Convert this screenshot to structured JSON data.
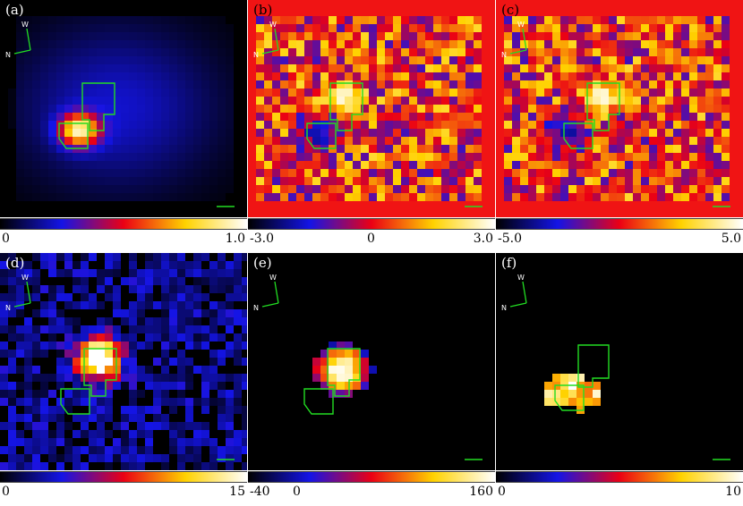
{
  "panels": [
    {
      "label": "(a)",
      "colormap": "bb",
      "colorbar_ticks": [
        "0",
        "1.0"
      ],
      "map_style": "smooth-blue",
      "compass": {
        "w": "W",
        "n": "N"
      }
    },
    {
      "label": "(b)",
      "colormap": "bb",
      "colorbar_ticks": [
        "-3.0",
        "0",
        "3.0"
      ],
      "map_style": "noisy-red",
      "compass": {
        "w": "W",
        "n": "N"
      }
    },
    {
      "label": "(c)",
      "colormap": "bb",
      "colorbar_ticks": [
        "-5.0",
        "5.0"
      ],
      "map_style": "noisy-red",
      "compass": {
        "w": "W",
        "n": "N"
      }
    },
    {
      "label": "(d)",
      "colormap": "bb",
      "colorbar_ticks": [
        "0",
        "15"
      ],
      "map_style": "sparse-blue",
      "compass": {
        "w": "W",
        "n": "N"
      }
    },
    {
      "label": "(e)",
      "colormap": "bb",
      "colorbar_ticks": [
        "-40",
        "0",
        "160"
      ],
      "map_style": "black-blob",
      "compass": {
        "w": "W",
        "n": "N"
      }
    },
    {
      "label": "(f)",
      "colormap": "bb",
      "colorbar_ticks": [
        "0",
        "10"
      ],
      "map_style": "black-speckle",
      "compass": {
        "w": "W",
        "n": "N"
      }
    }
  ],
  "colors": {
    "contour": "#22dd22",
    "background_white": "#ffffff"
  }
}
